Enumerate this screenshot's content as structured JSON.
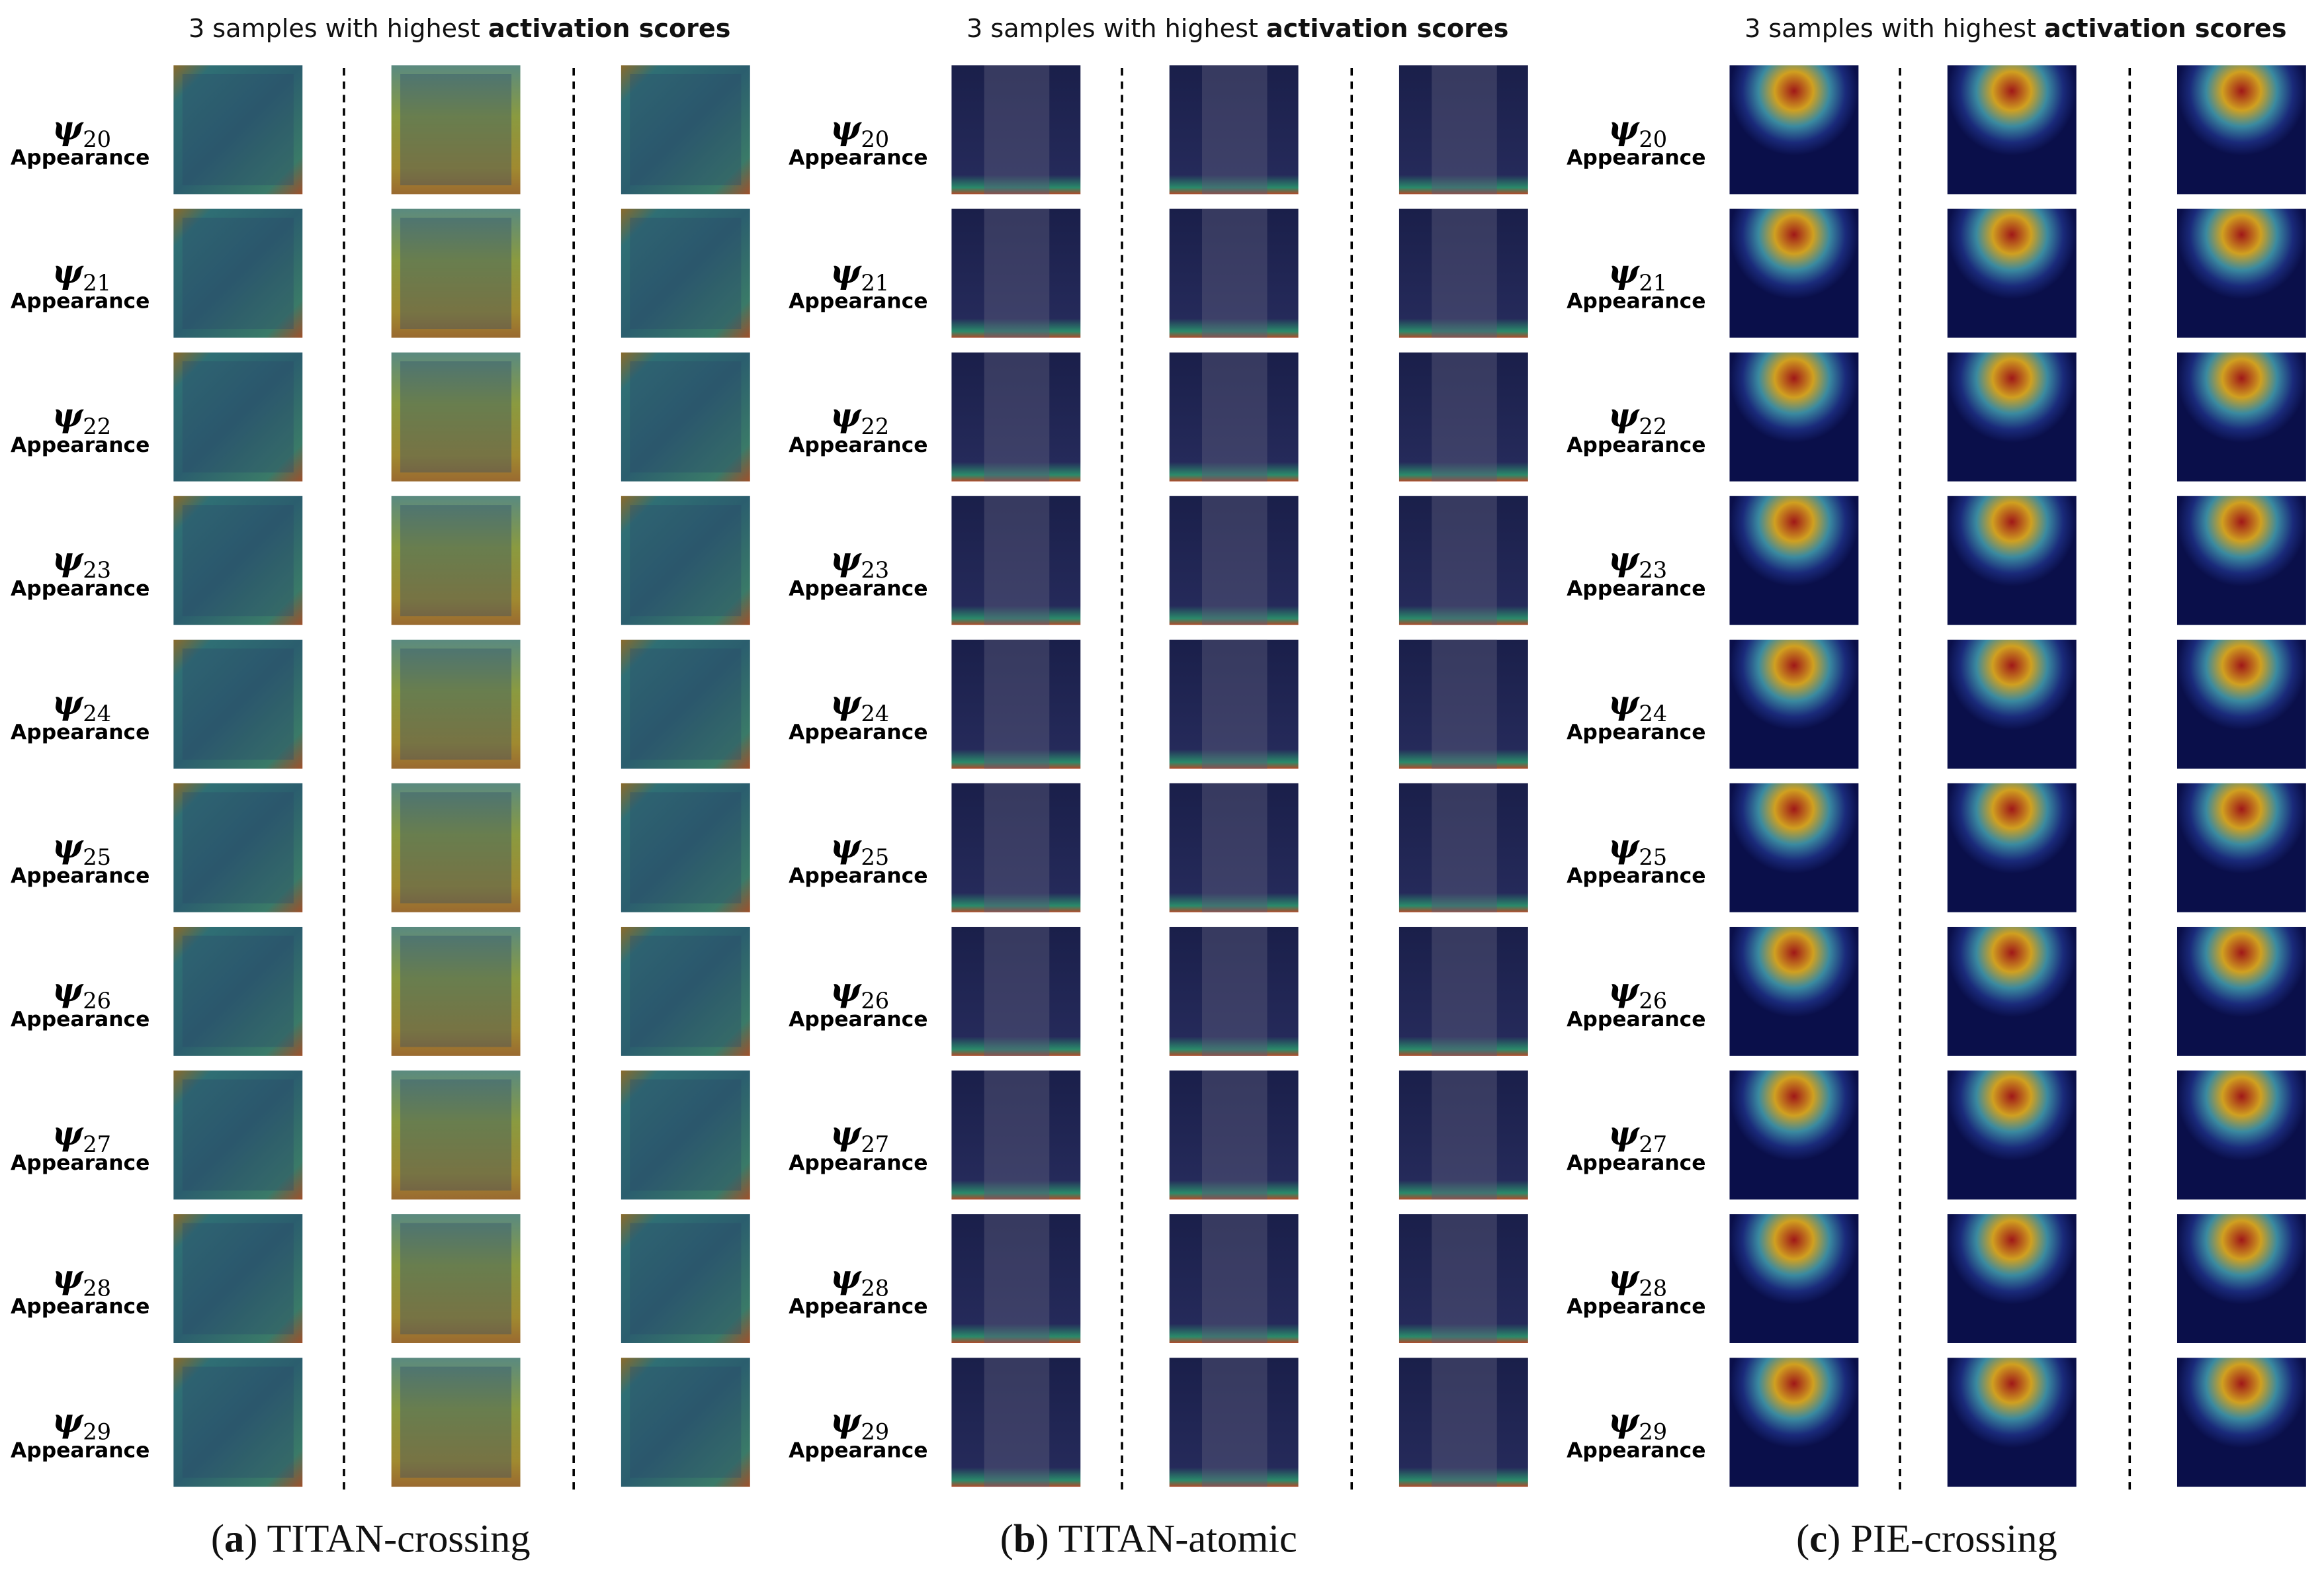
{
  "panels": [
    {
      "header": {
        "prefix": "3 samples with highest ",
        "bold": "activation scores"
      },
      "rows": [
        {
          "symbol": "ψ",
          "index": "20",
          "label": "Appearance"
        },
        {
          "symbol": "ψ",
          "index": "21",
          "label": "Appearance"
        },
        {
          "symbol": "ψ",
          "index": "22",
          "label": "Appearance"
        },
        {
          "symbol": "ψ",
          "index": "23",
          "label": "Appearance"
        },
        {
          "symbol": "ψ",
          "index": "24",
          "label": "Appearance"
        },
        {
          "symbol": "ψ",
          "index": "25",
          "label": "Appearance"
        },
        {
          "symbol": "ψ",
          "index": "26",
          "label": "Appearance"
        },
        {
          "symbol": "ψ",
          "index": "27",
          "label": "Appearance"
        },
        {
          "symbol": "ψ",
          "index": "28",
          "label": "Appearance"
        },
        {
          "symbol": "ψ",
          "index": "29",
          "label": "Appearance"
        }
      ],
      "caption": {
        "open": "(",
        "letter": "a",
        "close": ")",
        "text": " TITAN-crossing"
      }
    },
    {
      "header": {
        "prefix": "3 samples with highest ",
        "bold": "activation scores"
      },
      "rows": [
        {
          "symbol": "ψ",
          "index": "20",
          "label": "Appearance"
        },
        {
          "symbol": "ψ",
          "index": "21",
          "label": "Appearance"
        },
        {
          "symbol": "ψ",
          "index": "22",
          "label": "Appearance"
        },
        {
          "symbol": "ψ",
          "index": "23",
          "label": "Appearance"
        },
        {
          "symbol": "ψ",
          "index": "24",
          "label": "Appearance"
        },
        {
          "symbol": "ψ",
          "index": "25",
          "label": "Appearance"
        },
        {
          "symbol": "ψ",
          "index": "26",
          "label": "Appearance"
        },
        {
          "symbol": "ψ",
          "index": "27",
          "label": "Appearance"
        },
        {
          "symbol": "ψ",
          "index": "28",
          "label": "Appearance"
        },
        {
          "symbol": "ψ",
          "index": "29",
          "label": "Appearance"
        }
      ],
      "caption": {
        "open": "(",
        "letter": "b",
        "close": ")",
        "text": " TITAN-atomic"
      }
    },
    {
      "header": {
        "prefix": "3 samples with highest ",
        "bold": "activation scores"
      },
      "rows": [
        {
          "symbol": "ψ",
          "index": "20",
          "label": "Appearance"
        },
        {
          "symbol": "ψ",
          "index": "21",
          "label": "Appearance"
        },
        {
          "symbol": "ψ",
          "index": "22",
          "label": "Appearance"
        },
        {
          "symbol": "ψ",
          "index": "23",
          "label": "Appearance"
        },
        {
          "symbol": "ψ",
          "index": "24",
          "label": "Appearance"
        },
        {
          "symbol": "ψ",
          "index": "25",
          "label": "Appearance"
        },
        {
          "symbol": "ψ",
          "index": "26",
          "label": "Appearance"
        },
        {
          "symbol": "ψ",
          "index": "27",
          "label": "Appearance"
        },
        {
          "symbol": "ψ",
          "index": "28",
          "label": "Appearance"
        },
        {
          "symbol": "ψ",
          "index": "29",
          "label": "Appearance"
        }
      ],
      "caption": {
        "open": "(",
        "letter": "c",
        "close": ")",
        "text": " PIE-crossing"
      }
    }
  ]
}
